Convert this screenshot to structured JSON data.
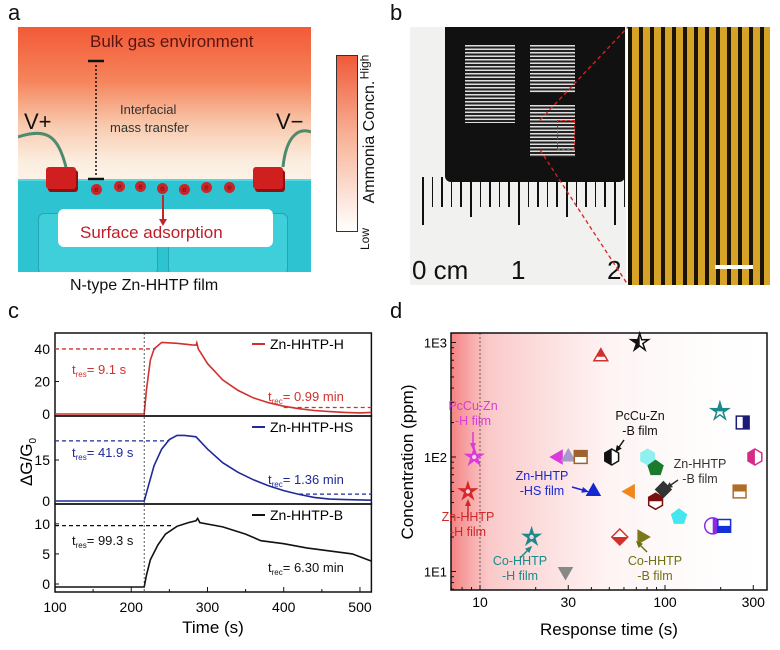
{
  "panels": {
    "a": {
      "label": "a",
      "bulk": "Bulk gas environment",
      "interfacial_1": "Interfacial",
      "interfacial_2": "mass transfer",
      "vplus": "V+",
      "vminus": "V−",
      "electron": "e",
      "surface": "Surface adsorption",
      "caption": "N-type Zn-HHTP film",
      "colorbar_title": "Ammonia Concn.",
      "colorbar_high": "High",
      "colorbar_low": "Low"
    },
    "b": {
      "label": "b",
      "ruler_0": "0 cm",
      "ruler_1": "1",
      "ruler_2": "2"
    },
    "c": {
      "label": "c"
    },
    "d": {
      "label": "d"
    }
  },
  "colors": {
    "h": "#d0312d",
    "hs": "#1f2a9a",
    "b": "#111111",
    "shade": "#f26b6b"
  },
  "chart_data": [
    {
      "panel": "c",
      "type": "line",
      "xlabel": "Time (s)",
      "ylabel": "ΔG/G",
      "ylabel_sub": "0",
      "xlim": [
        100,
        515
      ],
      "xticks": [
        100,
        200,
        300,
        400,
        500
      ],
      "exposure_start": 217,
      "sub_res": "res",
      "sub_rec": "rec",
      "series": [
        {
          "name": "Zn-HHTP-H",
          "color": "#d0312d",
          "ylim": [
            -1.2,
            49.8
          ],
          "yticks": [
            0,
            20,
            40
          ],
          "t_res": "= 9.1 s",
          "t_rec": "= 0.99 min",
          "res_level": 40,
          "res_end": 232,
          "rec_level": 4,
          "rec_start": 400,
          "x": [
            100,
            210,
            217,
            220,
            225,
            230,
            240,
            260,
            280,
            285,
            286,
            288,
            300,
            320,
            340,
            360,
            380,
            400,
            420,
            440,
            460,
            480,
            500,
            515
          ],
          "y": [
            0,
            0,
            0,
            15,
            33,
            40,
            44,
            43.5,
            42.5,
            42.3,
            43.8,
            40,
            31,
            21,
            14.5,
            10,
            7,
            4.8,
            3.3,
            2.2,
            1.5,
            1.0,
            0.7,
            1.0
          ]
        },
        {
          "name": "Zn-HHTP-HS",
          "color": "#1f2a9a",
          "ylim": [
            -1.1,
            31.1
          ],
          "yticks": [
            0,
            15
          ],
          "t_res": "= 41.9 s",
          "t_rec": "= 1.36 min",
          "res_level": 22,
          "res_end": 250,
          "rec_level": 2.5,
          "rec_start": 420,
          "x": [
            100,
            217,
            222,
            230,
            240,
            250,
            260,
            270,
            285,
            300,
            320,
            340,
            360,
            380,
            400,
            420,
            440,
            460,
            480,
            500,
            515
          ],
          "y": [
            0,
            0,
            5,
            13,
            19,
            22.5,
            24,
            24,
            23.5,
            19,
            14,
            10.5,
            7.8,
            5.6,
            3.8,
            2.4,
            1.3,
            0.7,
            0.5,
            0.4,
            0.3
          ]
        },
        {
          "name": "Zn-HHTP-B",
          "color": "#111111",
          "ylim": [
            -1.33,
            13.3
          ],
          "yticks": [
            0,
            5,
            10
          ],
          "t_res": "= 99.3 s",
          "t_rec": "= 6.30 min",
          "res_level": 9.7,
          "res_end": 255,
          "rec_level": null,
          "rec_start": null,
          "x": [
            100,
            217,
            220,
            225,
            235,
            245,
            260,
            275,
            285,
            287,
            290,
            320,
            350,
            370,
            400,
            430,
            460,
            490,
            515
          ],
          "y": [
            -0.5,
            -0.5,
            1.5,
            4,
            6.5,
            8.3,
            9.6,
            10.2,
            10.5,
            10.9,
            10.2,
            9.5,
            8.3,
            7.2,
            6.7,
            6.0,
            5.5,
            5.0,
            3.8
          ]
        }
      ]
    },
    {
      "panel": "d",
      "type": "scatter",
      "xlabel": "Response time (s)",
      "ylabel": "Concentration (ppm)",
      "xscale": "log",
      "yscale": "log",
      "xlim": [
        7,
        356
      ],
      "ylim": [
        6.8,
        1200
      ],
      "xticks": [
        10,
        30,
        100,
        300
      ],
      "xtick_labels": [
        "10",
        "30",
        "100",
        "300"
      ],
      "yticks": [
        10,
        100,
        1000
      ],
      "ytick_labels": [
        "1E1",
        "1E2",
        "1E3"
      ],
      "threshold_x": 10,
      "points": [
        {
          "x": 73,
          "y": 1000,
          "shape": "star",
          "color": "#111111",
          "half": "left"
        },
        {
          "x": 45,
          "y": 750,
          "shape": "tri-up",
          "color": "#d0312d",
          "half": "top"
        },
        {
          "x": 198,
          "y": 250,
          "shape": "star",
          "color": "#1a8a8a",
          "half": "top"
        },
        {
          "x": 263,
          "y": 200,
          "shape": "square",
          "color": "#1a1a7a",
          "half": "right"
        },
        {
          "x": 306,
          "y": 100,
          "shape": "hexagon",
          "color": "#d62a8a",
          "half": "left"
        },
        {
          "x": 9.3,
          "y": 100,
          "shape": "star",
          "color": "#d93ad9",
          "half": "none",
          "label": "PcCu-Zn-H film"
        },
        {
          "x": 8.6,
          "y": 50,
          "shape": "star",
          "color": "#d62828",
          "half": "none",
          "label": "Zn-HHTP-H film"
        },
        {
          "x": 26.5,
          "y": 100,
          "shape": "tri-left",
          "color": "#d93ad9",
          "half": "full"
        },
        {
          "x": 30,
          "y": 100,
          "shape": "tri-up",
          "color": "#a59acb",
          "half": "full"
        },
        {
          "x": 35,
          "y": 100,
          "shape": "square",
          "color": "#a0622d",
          "half": "top"
        },
        {
          "x": 51.5,
          "y": 100,
          "shape": "hexagon",
          "color": "#111111",
          "half": "left",
          "label": "PcCu-Zn-B film"
        },
        {
          "x": 80.5,
          "y": 100,
          "shape": "hexagon",
          "color": "#8ff0f0",
          "half": "full"
        },
        {
          "x": 89,
          "y": 80,
          "shape": "pentagon",
          "color": "#1c7a2c",
          "half": "full"
        },
        {
          "x": 41,
          "y": 50,
          "shape": "tri-up",
          "color": "#1528d0",
          "half": "full",
          "label": "Zn-HHTP-HS film"
        },
        {
          "x": 65,
          "y": 50,
          "shape": "tri-left",
          "color": "#f0861e",
          "half": "full"
        },
        {
          "x": 89,
          "y": 41,
          "shape": "hexagon",
          "color": "#7a1010",
          "half": "top"
        },
        {
          "x": 98,
          "y": 52,
          "shape": "diamond",
          "color": "#333333",
          "half": "full",
          "label": "Zn-HHTP-B film"
        },
        {
          "x": 253,
          "y": 50,
          "shape": "square",
          "color": "#b06d2a",
          "half": "top"
        },
        {
          "x": 119,
          "y": 30,
          "shape": "pentagon",
          "color": "#45e6ef",
          "half": "full"
        },
        {
          "x": 181,
          "y": 25,
          "shape": "circle",
          "color": "#8a2be2",
          "half": "right"
        },
        {
          "x": 209,
          "y": 25,
          "shape": "square",
          "color": "#1530d8",
          "half": "bottom"
        },
        {
          "x": 57,
          "y": 20,
          "shape": "diamond",
          "color": "#d0312d",
          "half": "bottom"
        },
        {
          "x": 75,
          "y": 20,
          "shape": "tri-right",
          "color": "#7a7a1a",
          "half": "full",
          "label": "Co-HHTP-B film"
        },
        {
          "x": 19,
          "y": 20,
          "shape": "star",
          "color": "#1a8a8a",
          "half": "none",
          "label": "Co-HHTP-H film"
        },
        {
          "x": 29,
          "y": 10,
          "shape": "tri-down",
          "color": "#888888",
          "half": "full"
        }
      ],
      "annotations": {
        "pccu_h": [
          "PcCu-Zn",
          "-H film"
        ],
        "zn_h": [
          "Zn-HHTP",
          "-H film"
        ],
        "zn_hs": [
          "Zn-HHTP",
          "-HS film"
        ],
        "co_h": [
          "Co-HHTP",
          "-H film"
        ],
        "pccu_b": [
          "PcCu-Zn",
          "-B film"
        ],
        "zn_b": [
          "Zn-HHTP",
          "-B film"
        ],
        "co_b": [
          "Co-HHTP",
          "-B film"
        ]
      }
    }
  ]
}
